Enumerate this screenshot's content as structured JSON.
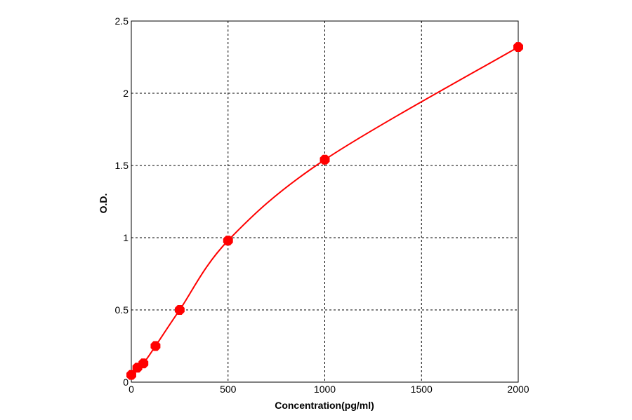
{
  "chart_data": {
    "type": "line",
    "title": "",
    "xlabel": "Concentration(pg/ml)",
    "ylabel": "O.D.",
    "xlim": [
      0,
      2000
    ],
    "ylim": [
      0,
      2.5
    ],
    "x_ticks": [
      0,
      500,
      1000,
      1500,
      2000
    ],
    "x_tick_labels": [
      "0",
      "500",
      "1000",
      "1500",
      "2000"
    ],
    "y_ticks": [
      0,
      0.5,
      1,
      1.5,
      2,
      2.5
    ],
    "y_tick_labels": [
      "0",
      "0.5",
      "1",
      "1.5",
      "2",
      "2.5"
    ],
    "grid": true,
    "grid_style": "dashed",
    "legend": "none",
    "series": [
      {
        "points": [
          {
            "x": 0,
            "y": 0.05
          },
          {
            "x": 31.25,
            "y": 0.1
          },
          {
            "x": 62.5,
            "y": 0.13
          },
          {
            "x": 125,
            "y": 0.25
          },
          {
            "x": 250,
            "y": 0.5
          },
          {
            "x": 500,
            "y": 0.98
          },
          {
            "x": 1000,
            "y": 1.54
          },
          {
            "x": 2000,
            "y": 2.32
          }
        ],
        "fit_curve": "smooth"
      }
    ],
    "colors": {
      "series": "#ff0000",
      "grid": "#000000",
      "axes": "#000000"
    }
  }
}
